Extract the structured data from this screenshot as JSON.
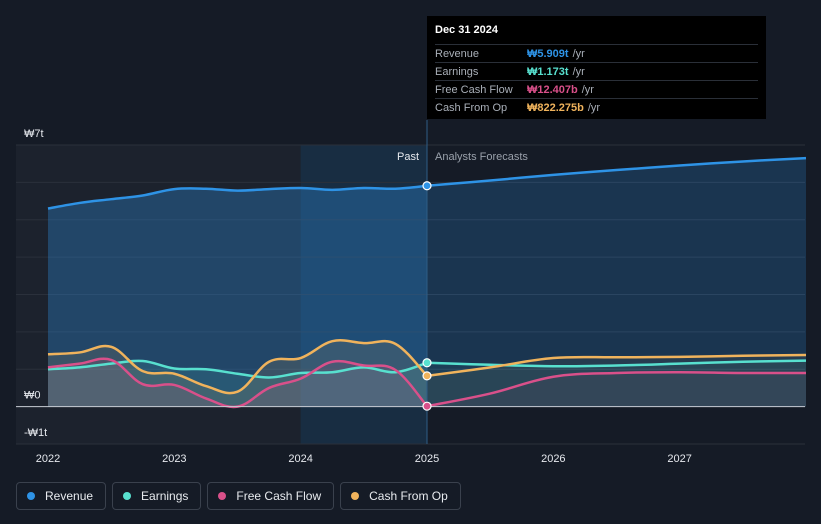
{
  "tooltip": {
    "date": "Dec 31 2024",
    "rows": [
      {
        "label": "Revenue",
        "value": "₩5.909t",
        "unit": "/yr",
        "color": "#2e93e6"
      },
      {
        "label": "Earnings",
        "value": "₩1.173t",
        "unit": "/yr",
        "color": "#58e0cf"
      },
      {
        "label": "Free Cash Flow",
        "value": "₩12.407b",
        "unit": "/yr",
        "color": "#d9508a"
      },
      {
        "label": "Cash From Op",
        "value": "₩822.275b",
        "unit": "/yr",
        "color": "#f0b35c"
      }
    ]
  },
  "legend": [
    {
      "label": "Revenue",
      "color": "#2e93e6"
    },
    {
      "label": "Earnings",
      "color": "#58e0cf"
    },
    {
      "label": "Free Cash Flow",
      "color": "#d9508a"
    },
    {
      "label": "Cash From Op",
      "color": "#f0b35c"
    }
  ],
  "chart_data": {
    "type": "line",
    "title": "",
    "xlabel": "",
    "ylabel": "",
    "y_unit": "trillion KRW",
    "ylim": [
      -1,
      7
    ],
    "xlim": [
      2021.75,
      2028.0
    ],
    "y_tick_labels": [
      {
        "value": 7,
        "label": "₩7t"
      },
      {
        "value": 0,
        "label": "₩0"
      },
      {
        "value": -1,
        "label": "-₩1t"
      }
    ],
    "x_ticks": [
      {
        "value": 2022,
        "label": "2022"
      },
      {
        "value": 2023,
        "label": "2023"
      },
      {
        "value": 2024,
        "label": "2024"
      },
      {
        "value": 2025,
        "label": "2025"
      },
      {
        "value": 2026,
        "label": "2026"
      },
      {
        "value": 2027,
        "label": "2027"
      }
    ],
    "past_label": "Past",
    "forecast_label": "Analysts Forecasts",
    "divider_x": 2025.0,
    "highlight_start": 2024.0,
    "series": [
      {
        "name": "Revenue",
        "color": "#2e93e6",
        "past": [
          [
            2022.0,
            5.3
          ],
          [
            2022.25,
            5.45
          ],
          [
            2022.5,
            5.55
          ],
          [
            2022.75,
            5.65
          ],
          [
            2023.0,
            5.82
          ],
          [
            2023.25,
            5.83
          ],
          [
            2023.5,
            5.78
          ],
          [
            2023.75,
            5.82
          ],
          [
            2024.0,
            5.85
          ],
          [
            2024.25,
            5.8
          ],
          [
            2024.5,
            5.85
          ],
          [
            2024.75,
            5.83
          ],
          [
            2025.0,
            5.909
          ]
        ],
        "forecast": [
          [
            2025.0,
            5.909
          ],
          [
            2025.5,
            6.05
          ],
          [
            2026.0,
            6.2
          ],
          [
            2026.5,
            6.33
          ],
          [
            2027.0,
            6.45
          ],
          [
            2027.5,
            6.56
          ],
          [
            2028.0,
            6.65
          ]
        ]
      },
      {
        "name": "Earnings",
        "color": "#58e0cf",
        "past": [
          [
            2022.0,
            1.0
          ],
          [
            2022.25,
            1.05
          ],
          [
            2022.5,
            1.15
          ],
          [
            2022.75,
            1.22
          ],
          [
            2023.0,
            1.02
          ],
          [
            2023.25,
            1.0
          ],
          [
            2023.5,
            0.88
          ],
          [
            2023.75,
            0.78
          ],
          [
            2024.0,
            0.9
          ],
          [
            2024.25,
            0.92
          ],
          [
            2024.5,
            1.05
          ],
          [
            2024.75,
            0.92
          ],
          [
            2025.0,
            1.173
          ]
        ],
        "forecast": [
          [
            2025.0,
            1.173
          ],
          [
            2025.5,
            1.12
          ],
          [
            2026.0,
            1.08
          ],
          [
            2026.5,
            1.1
          ],
          [
            2027.0,
            1.15
          ],
          [
            2027.5,
            1.2
          ],
          [
            2028.0,
            1.23
          ]
        ]
      },
      {
        "name": "Free Cash Flow",
        "color": "#d9508a",
        "past": [
          [
            2022.0,
            1.05
          ],
          [
            2022.25,
            1.15
          ],
          [
            2022.5,
            1.25
          ],
          [
            2022.75,
            0.6
          ],
          [
            2023.0,
            0.58
          ],
          [
            2023.25,
            0.22
          ],
          [
            2023.5,
            0.0
          ],
          [
            2023.75,
            0.5
          ],
          [
            2024.0,
            0.75
          ],
          [
            2024.25,
            1.2
          ],
          [
            2024.5,
            1.1
          ],
          [
            2024.75,
            0.98
          ],
          [
            2025.0,
            0.012
          ]
        ],
        "forecast": [
          [
            2025.0,
            0.012
          ],
          [
            2025.5,
            0.35
          ],
          [
            2026.0,
            0.8
          ],
          [
            2026.5,
            0.9
          ],
          [
            2027.0,
            0.92
          ],
          [
            2027.5,
            0.9
          ],
          [
            2028.0,
            0.9
          ]
        ]
      },
      {
        "name": "Cash From Op",
        "color": "#f0b35c",
        "past": [
          [
            2022.0,
            1.4
          ],
          [
            2022.25,
            1.45
          ],
          [
            2022.5,
            1.6
          ],
          [
            2022.75,
            0.95
          ],
          [
            2023.0,
            0.88
          ],
          [
            2023.25,
            0.55
          ],
          [
            2023.5,
            0.4
          ],
          [
            2023.75,
            1.2
          ],
          [
            2024.0,
            1.3
          ],
          [
            2024.25,
            1.75
          ],
          [
            2024.5,
            1.7
          ],
          [
            2024.75,
            1.68
          ],
          [
            2025.0,
            0.822
          ]
        ],
        "forecast": [
          [
            2025.0,
            0.822
          ],
          [
            2025.5,
            1.05
          ],
          [
            2026.0,
            1.3
          ],
          [
            2026.5,
            1.32
          ],
          [
            2027.0,
            1.33
          ],
          [
            2027.5,
            1.36
          ],
          [
            2028.0,
            1.38
          ]
        ]
      }
    ]
  }
}
